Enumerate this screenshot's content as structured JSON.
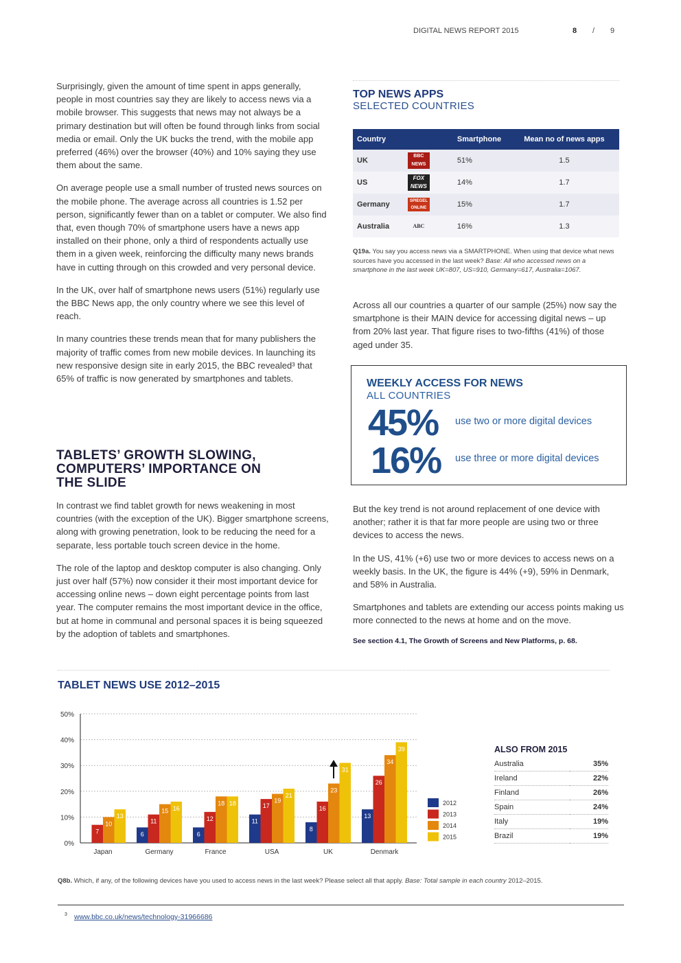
{
  "header": {
    "title": "DIGITAL NEWS REPORT 2015",
    "page": "8",
    "sep": "/",
    "total": "9"
  },
  "left": {
    "paras1": [
      "Surprisingly, given the amount of time spent in apps generally, people in most countries say they are likely to access news via a mobile browser. This suggests that news may not always be a primary destination but will often be found through links from social media or email. Only the UK bucks the trend, with the mobile app preferred (46%) over the browser (40%) and 10% saying they use them about the same.",
      "On average people use a small number of trusted news sources on the mobile phone. The average across all countries is 1.52 per person, significantly fewer than on a tablet or computer. We also find that, even though 70% of smartphone users have a news app installed on their phone, only a third of respondents actually use them in a given week, reinforcing the difficulty many news brands have in cutting through on this crowded and very personal device.",
      "In the UK, over half of smartphone news users (51%) regularly use the BBC News app, the only country where we see this level of reach.",
      "In many countries these trends mean that for many publishers the majority of traffic comes from new mobile devices. In launching its new responsive design site in early 2015, the BBC revealed³ that 65% of traffic is now generated by smartphones and tablets."
    ],
    "heading": "TABLETS’ GROWTH SLOWING, COMPUTERS’ IMPORTANCE ON THE SLIDE",
    "paras2": [
      "In contrast we find tablet growth for news weakening in most countries (with the exception of the UK). Bigger smartphone screens, along with growing  penetration, look to be reducing the need for a separate, less portable touch screen device in the home.",
      "The role of the laptop and desktop computer is also changing. Only just over half (57%) now consider it their most important device for accessing online news – down eight percentage points from last year. The computer remains the most important device in the office, but at home in communal and personal spaces it is being squeezed by the adoption of tablets and smartphones."
    ]
  },
  "apps": {
    "title": "TOP NEWS APPS",
    "subtitle": "SELECTED COUNTRIES",
    "headers": [
      "Country",
      "",
      "Smartphone",
      "Mean no of news apps"
    ],
    "rows": [
      {
        "country": "UK",
        "logo": "BBC NEWS",
        "smartphone": "51%",
        "mean": "1.5"
      },
      {
        "country": "US",
        "logo": "FOX NEWS",
        "smartphone": "14%",
        "mean": "1.7"
      },
      {
        "country": "Germany",
        "logo": "SPIEGEL ONLINE",
        "smartphone": "15%",
        "mean": "1.7"
      },
      {
        "country": "Australia",
        "logo": "ABC",
        "smartphone": "16%",
        "mean": "1.3"
      }
    ],
    "note_bold": "Q19a.",
    "note": " You say you access news via a SMARTPHONE. When using that device what news sources have you accessed in the last week? ",
    "note_italic": "Base: All who accessed news on a smartphone in the last week UK=807, US=910, Germany=617, Australia=1067."
  },
  "right": {
    "para1": "Across all our countries a quarter of our sample (25%) now say the smartphone is their MAIN device for accessing digital news – up from 20% last year. That figure rises to two-fifths (41%) of those aged under 35.",
    "paras2": [
      "But the key trend is not around replacement of one device with another; rather it is that far more people are using two or three devices to access the news.",
      "In the US, 41% (+6) use two or more devices to access news on a weekly basis. In the UK, the figure is 44% (+9), 59% in Denmark, and 58% in Australia.",
      "Smartphones and tablets are extending our access points making us more connected to the news at home and on the move."
    ],
    "see": "See section 4.1, The Growth of Screens and New Platforms, p. 68."
  },
  "weekly": {
    "title": "WEEKLY ACCESS FOR NEWS",
    "subtitle": "ALL COUNTRIES",
    "stats": [
      {
        "value": "45%",
        "label": "use two or more digital devices"
      },
      {
        "value": "16%",
        "label": "use three or more digital devices"
      }
    ]
  },
  "chart_data": {
    "type": "bar",
    "title": "TABLET NEWS USE 2012–2015",
    "categories": [
      "Japan",
      "Germany",
      "France",
      "USA",
      "UK",
      "Denmark"
    ],
    "series": [
      {
        "name": "2012",
        "color": "#1f3a8a",
        "values": [
          null,
          6,
          6,
          11,
          8,
          13
        ]
      },
      {
        "name": "2013",
        "color": "#c8281e",
        "values": [
          7,
          11,
          12,
          17,
          16,
          26
        ]
      },
      {
        "name": "2014",
        "color": "#e4870e",
        "values": [
          10,
          15,
          18,
          19,
          23,
          34
        ]
      },
      {
        "name": "2015",
        "color": "#efc20a",
        "values": [
          13,
          16,
          18,
          21,
          31,
          39
        ]
      }
    ],
    "yticks": [
      "0%",
      "10%",
      "20%",
      "30%",
      "40%",
      "50%"
    ],
    "ylim": [
      0,
      50
    ],
    "legend": "right",
    "annotation": "up-arrow on UK 2014→2015"
  },
  "also": {
    "title": "ALSO FROM 2015",
    "rows": [
      [
        "Australia",
        "35%"
      ],
      [
        "Ireland",
        "22%"
      ],
      [
        "Finland",
        "26%"
      ],
      [
        "Spain",
        "24%"
      ],
      [
        "Italy",
        "19%"
      ],
      [
        "Brazil",
        "19%"
      ]
    ]
  },
  "chart_note": {
    "bold": "Q8b.",
    "text": " Which, if any, of the following devices have you used to access news in the last week? Please select all that apply. ",
    "italic": "Base: Total sample in each country",
    "end": " 2012–2015."
  },
  "footnote": {
    "num": "3",
    "link": "www.bbc.co.uk/news/technology-31966686"
  }
}
